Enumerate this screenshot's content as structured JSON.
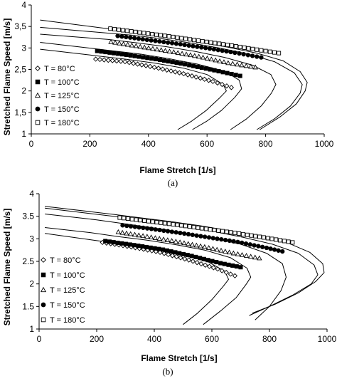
{
  "chart_data": [
    {
      "panel": "a",
      "caption": "(a)",
      "type": "scatter",
      "xlabel": "Flame Stretch [1/s]",
      "ylabel": "Stretched Flame Speed [m/s]",
      "xlim": [
        0,
        1000
      ],
      "ylim": [
        1,
        4
      ],
      "xticks": [
        "0",
        "200",
        "400",
        "600",
        "800",
        "1000"
      ],
      "yticks": [
        "1",
        "1,5",
        "2",
        "2,5",
        "3",
        "3,5",
        "4"
      ],
      "legend_position": "bottom-left",
      "series": [
        {
          "name": "T = 80°C",
          "marker": "diamond-open",
          "x": [
            220,
            320,
            420,
            520,
            620,
            683
          ],
          "y": [
            2.74,
            2.68,
            2.55,
            2.4,
            2.22,
            2.08
          ],
          "curve_x": [
            500,
            548,
            598,
            645,
            666,
            655,
            600,
            520,
            420,
            320,
            220,
            120,
            30
          ],
          "curve_y": [
            1.1,
            1.3,
            1.55,
            1.85,
            2.0,
            2.15,
            2.38,
            2.53,
            2.65,
            2.74,
            2.82,
            2.9,
            2.97
          ]
        },
        {
          "name": "T = 100°C",
          "marker": "square-filled",
          "x": [
            225,
            325,
            425,
            525,
            625,
            713
          ],
          "y": [
            2.93,
            2.84,
            2.74,
            2.62,
            2.48,
            2.35
          ],
          "curve_x": [
            550,
            600,
            650,
            695,
            718,
            710,
            660,
            570,
            470,
            370,
            270,
            170,
            30
          ],
          "curve_y": [
            1.1,
            1.3,
            1.55,
            1.85,
            2.05,
            2.25,
            2.46,
            2.62,
            2.75,
            2.86,
            2.94,
            3.02,
            3.13
          ]
        },
        {
          "name": "T = 125°C",
          "marker": "triangle-open",
          "x": [
            272,
            372,
            472,
            572,
            672,
            765
          ],
          "y": [
            3.14,
            3.03,
            2.92,
            2.8,
            2.65,
            2.55
          ],
          "curve_x": [
            680,
            735,
            785,
            820,
            835,
            818,
            755,
            660,
            560,
            460,
            360,
            260,
            30
          ],
          "curve_y": [
            1.1,
            1.35,
            1.65,
            1.95,
            2.15,
            2.38,
            2.6,
            2.78,
            2.92,
            3.03,
            3.12,
            3.2,
            3.32
          ]
        },
        {
          "name": "T = 150°C",
          "marker": "circle-filled",
          "x": [
            295,
            395,
            495,
            595,
            695,
            785
          ],
          "y": [
            3.28,
            3.19,
            3.1,
            3.0,
            2.89,
            2.78
          ],
          "curve_x": [
            770,
            830,
            885,
            918,
            925,
            898,
            830,
            740,
            640,
            540,
            440,
            340,
            30
          ],
          "curve_y": [
            1.1,
            1.35,
            1.65,
            1.95,
            2.15,
            2.42,
            2.68,
            2.86,
            3.0,
            3.12,
            3.22,
            3.3,
            3.48
          ]
        },
        {
          "name": "T = 180°C",
          "marker": "square-open",
          "x": [
            270,
            370,
            470,
            570,
            670,
            770,
            845
          ],
          "y": [
            3.45,
            3.36,
            3.27,
            3.17,
            3.07,
            2.96,
            2.88
          ],
          "curve_x": [
            780,
            850,
            905,
            935,
            942,
            918,
            860,
            770,
            670,
            570,
            470,
            370,
            270,
            30
          ],
          "curve_y": [
            1.1,
            1.4,
            1.7,
            2.0,
            2.2,
            2.45,
            2.7,
            2.88,
            3.02,
            3.14,
            3.25,
            3.35,
            3.44,
            3.65
          ]
        }
      ]
    },
    {
      "panel": "b",
      "caption": "(b)",
      "type": "scatter",
      "xlabel": "Flame Stretch [1/s]",
      "ylabel": "Stretched Flame Speed [m/s]",
      "xlim": [
        0,
        1000
      ],
      "ylim": [
        1,
        4
      ],
      "xticks": [
        "0",
        "200",
        "400",
        "600",
        "800",
        "1000"
      ],
      "yticks": [
        "1",
        "1.5",
        "2",
        "2.5",
        "3",
        "3.5",
        "4"
      ],
      "legend_position": "bottom-left",
      "series": [
        {
          "name": "T = 80°C",
          "marker": "diamond-open",
          "x": [
            220,
            320,
            420,
            520,
            620,
            680
          ],
          "y": [
            2.92,
            2.82,
            2.7,
            2.53,
            2.33,
            2.18
          ],
          "curve_x": [
            500,
            550,
            600,
            640,
            658,
            645,
            590,
            500,
            400,
            300,
            200,
            100,
            20
          ],
          "curve_y": [
            1.1,
            1.35,
            1.65,
            1.95,
            2.1,
            2.28,
            2.48,
            2.65,
            2.78,
            2.88,
            2.96,
            3.05,
            3.12
          ]
        },
        {
          "name": "T = 100°C",
          "marker": "square-filled",
          "x": [
            230,
            330,
            430,
            530,
            630,
            700
          ],
          "y": [
            2.95,
            2.86,
            2.76,
            2.62,
            2.46,
            2.37
          ],
          "curve_x": [
            570,
            630,
            685,
            720,
            735,
            722,
            665,
            575,
            475,
            375,
            275,
            175,
            20
          ],
          "curve_y": [
            1.1,
            1.4,
            1.7,
            2.0,
            2.15,
            2.35,
            2.58,
            2.75,
            2.87,
            2.97,
            3.05,
            3.14,
            3.25
          ]
        },
        {
          "name": "T = 125°C",
          "marker": "triangle-open",
          "x": [
            275,
            375,
            475,
            575,
            675,
            765
          ],
          "y": [
            3.15,
            3.05,
            2.94,
            2.82,
            2.68,
            2.57
          ],
          "curve_x": [
            750,
            800,
            840,
            858,
            845,
            790,
            700,
            600,
            500,
            400,
            300,
            200,
            20
          ],
          "curve_y": [
            1.2,
            1.5,
            1.85,
            2.15,
            2.45,
            2.68,
            2.88,
            3.02,
            3.14,
            3.24,
            3.33,
            3.42,
            3.55
          ]
        },
        {
          "name": "T = 150°C",
          "marker": "circle-filled",
          "x": [
            290,
            390,
            490,
            590,
            690,
            790,
            845
          ],
          "y": [
            3.3,
            3.22,
            3.13,
            3.03,
            2.93,
            2.8,
            2.72
          ],
          "curve_x": [
            730,
            800,
            880,
            945,
            968,
            955,
            900,
            810,
            710,
            610,
            510,
            410,
            310,
            20
          ],
          "curve_y": [
            1.3,
            1.5,
            1.75,
            2.0,
            2.2,
            2.42,
            2.68,
            2.88,
            3.03,
            3.16,
            3.27,
            3.37,
            3.46,
            3.68
          ]
        },
        {
          "name": "T = 180°C",
          "marker": "square-open",
          "x": [
            280,
            380,
            480,
            580,
            680,
            780,
            880
          ],
          "y": [
            3.47,
            3.39,
            3.31,
            3.22,
            3.13,
            3.03,
            2.92
          ],
          "curve_x": [
            740,
            820,
            900,
            960,
            990,
            985,
            940,
            860,
            760,
            660,
            560,
            460,
            360,
            260,
            20
          ],
          "curve_y": [
            1.35,
            1.55,
            1.8,
            2.05,
            2.25,
            2.45,
            2.7,
            2.92,
            3.07,
            3.18,
            3.29,
            3.38,
            3.46,
            3.54,
            3.72
          ]
        }
      ]
    }
  ]
}
